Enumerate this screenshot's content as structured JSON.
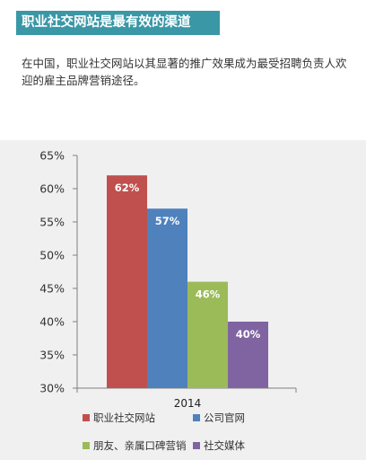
{
  "header": {
    "title": "职业社交网站是最有效的渠道",
    "intro": "在中国，职业社交网站以其显著的推广效果成为最受招聘负责人欢迎的雇主品牌营销途径。"
  },
  "chart_data": {
    "type": "bar",
    "categories": [
      "2014"
    ],
    "series": [
      {
        "name": "职业社交网站",
        "values": [
          62
        ],
        "label": "62%",
        "color": "#c0504d"
      },
      {
        "name": "公司官网",
        "values": [
          57
        ],
        "label": "57%",
        "color": "#4f81bd"
      },
      {
        "name": "朋友、亲属口碑营销",
        "values": [
          46
        ],
        "label": "46%",
        "color": "#9bbb59"
      },
      {
        "name": "社交媒体",
        "values": [
          40
        ],
        "label": "40%",
        "color": "#8064a2"
      }
    ],
    "ylim": [
      30,
      65
    ],
    "yticks": [
      30,
      35,
      40,
      45,
      50,
      55,
      60,
      65
    ],
    "ytick_labels": [
      "30%",
      "35%",
      "40%",
      "45%",
      "50%",
      "55%",
      "60%",
      "65%"
    ],
    "grid": false,
    "legend": "bottom",
    "title": "",
    "xlabel": "",
    "ylabel": ""
  }
}
